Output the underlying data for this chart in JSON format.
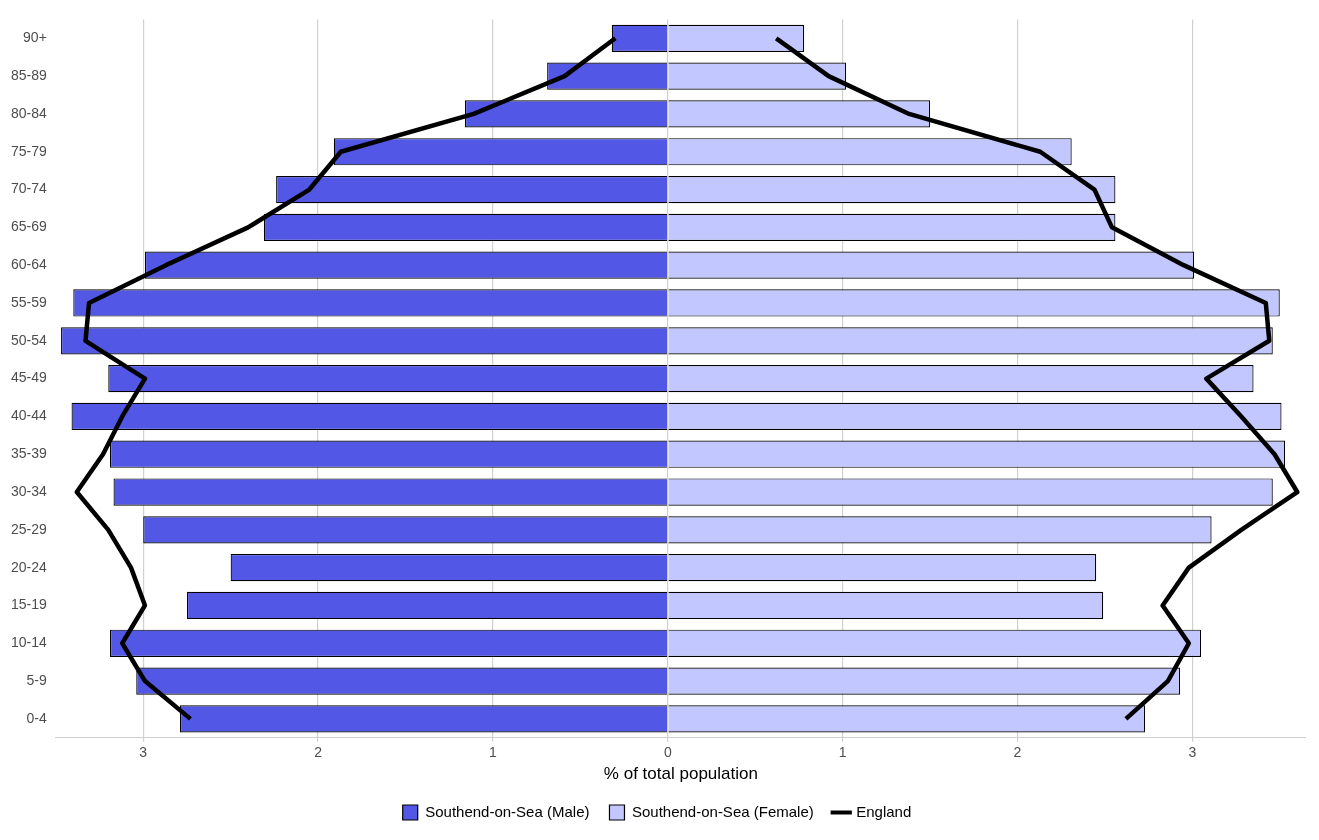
{
  "chart_data": {
    "type": "bar",
    "orientation": "horizontal",
    "stacked": true,
    "xlabel": "% of total population",
    "categories": [
      "90+",
      "85-89",
      "80-84",
      "75-79",
      "70-74",
      "65-69",
      "60-64",
      "55-59",
      "50-54",
      "45-49",
      "40-44",
      "35-39",
      "30-34",
      "25-29",
      "20-24",
      "15-19",
      "10-14",
      "5-9",
      "0-4"
    ],
    "series": [
      {
        "name": "Southend-on-Sea (Male)",
        "color": "#5257e5",
        "values": [
          -0.32,
          -0.69,
          -1.16,
          -1.91,
          -2.24,
          -2.31,
          -2.99,
          -3.4,
          -3.47,
          -3.2,
          -3.41,
          -3.19,
          -3.17,
          -3.0,
          -2.5,
          -2.75,
          -3.19,
          -3.04,
          -2.79
        ]
      },
      {
        "name": "Southend-on-Sea (Female)",
        "color": "#c2c8ff",
        "values": [
          0.78,
          1.02,
          1.5,
          2.31,
          2.56,
          2.56,
          3.01,
          3.5,
          3.46,
          3.35,
          3.51,
          3.53,
          3.46,
          3.11,
          2.45,
          2.49,
          3.05,
          2.93,
          2.73
        ]
      },
      {
        "type": "line",
        "name": "England",
        "color": "#000000",
        "values": [
          -0.3,
          -0.59,
          -1.11,
          -1.87,
          -2.05,
          -2.4,
          -2.87,
          -3.31,
          -3.33,
          -2.99,
          -3.12,
          -3.23,
          -3.38,
          -3.2,
          -3.07,
          -2.99,
          -3.12,
          -2.99,
          -2.73
        ]
      },
      {
        "type": "line",
        "color": "#000000",
        "values": [
          0.62,
          0.92,
          1.38,
          2.13,
          2.44,
          2.54,
          2.95,
          3.42,
          3.44,
          3.08,
          3.28,
          3.47,
          3.6,
          3.28,
          2.98,
          2.83,
          2.98,
          2.86,
          2.62
        ]
      }
    ],
    "xlim": [
      -3.5,
      3.65
    ],
    "xticks": [
      {
        "value": -3,
        "label": "3"
      },
      {
        "value": -2,
        "label": "2"
      },
      {
        "value": -1,
        "label": "1"
      },
      0,
      1,
      2,
      3
    ],
    "grid": "x",
    "legend": "bottom",
    "marker": "none",
    "line_style": "solid"
  }
}
